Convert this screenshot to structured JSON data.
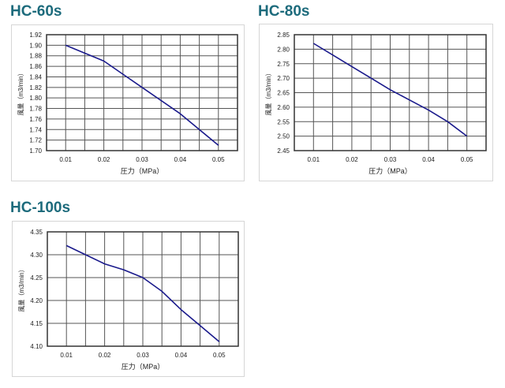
{
  "colors": {
    "title": "#1d6b7c",
    "line": "#1a1a8c",
    "grid": "#333333",
    "frame": "#d6d6d6"
  },
  "chart_data": [
    {
      "type": "line",
      "title": "HC-60s",
      "xlabel": "圧力（MPa）",
      "ylabel": "風量（m3/min）",
      "x_ticks": [
        "0.01",
        "0.02",
        "0.03",
        "0.04",
        "0.05"
      ],
      "y_ticks": [
        "1.92",
        "1.90",
        "1.88",
        "1.86",
        "1.84",
        "1.82",
        "1.80",
        "1.78",
        "1.76",
        "1.74",
        "1.72",
        "1.70"
      ],
      "xlim": [
        0.005,
        0.055
      ],
      "ylim": [
        1.7,
        1.92
      ],
      "grid": true,
      "x": [
        0.01,
        0.015,
        0.02,
        0.025,
        0.03,
        0.035,
        0.04,
        0.045,
        0.05
      ],
      "series": [
        {
          "name": "HC-60s",
          "values": [
            1.9,
            1.885,
            1.87,
            1.845,
            1.82,
            1.795,
            1.77,
            1.74,
            1.71
          ]
        }
      ]
    },
    {
      "type": "line",
      "title": "HC-80s",
      "xlabel": "圧力（MPa）",
      "ylabel": "風量（m3/min）",
      "x_ticks": [
        "0.01",
        "0.02",
        "0.03",
        "0.04",
        "0.05"
      ],
      "y_ticks": [
        "2.85",
        "2.80",
        "2.75",
        "2.70",
        "2.65",
        "2.60",
        "2.55",
        "2.50",
        "2.45"
      ],
      "xlim": [
        0.005,
        0.055
      ],
      "ylim": [
        2.45,
        2.85
      ],
      "grid": true,
      "x": [
        0.01,
        0.015,
        0.02,
        0.025,
        0.03,
        0.035,
        0.04,
        0.045,
        0.05
      ],
      "series": [
        {
          "name": "HC-80s",
          "values": [
            2.82,
            2.78,
            2.74,
            2.7,
            2.66,
            2.625,
            2.59,
            2.55,
            2.5
          ]
        }
      ]
    },
    {
      "type": "line",
      "title": "HC-100s",
      "xlabel": "圧力（MPa）",
      "ylabel": "風量（m3/min）",
      "x_ticks": [
        "0.01",
        "0.02",
        "0.03",
        "0.04",
        "0.05"
      ],
      "y_ticks": [
        "4.35",
        "4.30",
        "4.25",
        "4.20",
        "4.15",
        "4.10"
      ],
      "xlim": [
        0.005,
        0.055
      ],
      "ylim": [
        4.1,
        4.35
      ],
      "grid": true,
      "x": [
        0.01,
        0.015,
        0.02,
        0.025,
        0.03,
        0.035,
        0.04,
        0.045,
        0.05
      ],
      "series": [
        {
          "name": "HC-100s",
          "values": [
            4.32,
            4.3,
            4.28,
            4.267,
            4.25,
            4.22,
            4.18,
            4.145,
            4.11
          ]
        }
      ]
    }
  ]
}
